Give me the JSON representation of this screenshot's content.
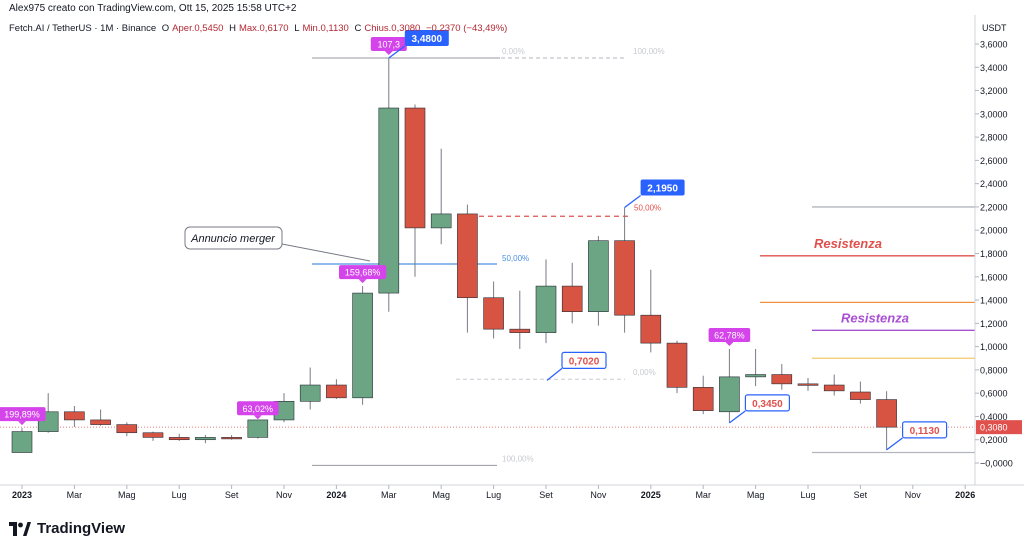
{
  "header": {
    "author_line": "Alex975 creato con TradingView.com, Ott 15, 2025 15:58 UTC+2",
    "symbol": "Fetch.AI / TetherUS · 1M · Binance",
    "o_label": "O",
    "o_val": "Aper.0,5450",
    "h_label": "H",
    "h_val": "Max.0,6170",
    "l_label": "L",
    "l_val": "Min.0,1130",
    "c_label": "C",
    "c_val": "Chius.0,3080",
    "change": "−0,2370 (−43,49%)"
  },
  "brand": {
    "name": "TradingView"
  },
  "chart_data": {
    "type": "candlestick",
    "currency": "USDT",
    "ylim": [
      -0.1,
      3.7
    ],
    "y_ticks": [
      {
        "v": 3.6,
        "label": "3,6000"
      },
      {
        "v": 3.4,
        "label": "3,4000"
      },
      {
        "v": 3.2,
        "label": "3,2000"
      },
      {
        "v": 3.0,
        "label": "3,0000"
      },
      {
        "v": 2.8,
        "label": "2,8000"
      },
      {
        "v": 2.6,
        "label": "2,6000"
      },
      {
        "v": 2.4,
        "label": "2,4000"
      },
      {
        "v": 2.2,
        "label": "2,2000"
      },
      {
        "v": 2.0,
        "label": "2,0000"
      },
      {
        "v": 1.8,
        "label": "1,8000"
      },
      {
        "v": 1.6,
        "label": "1,6000"
      },
      {
        "v": 1.4,
        "label": "1,4000"
      },
      {
        "v": 1.2,
        "label": "1,2000"
      },
      {
        "v": 1.0,
        "label": "1,0000"
      },
      {
        "v": 0.8,
        "label": "0,8000"
      },
      {
        "v": 0.6,
        "label": "0,6000"
      },
      {
        "v": 0.4,
        "label": "0,4000"
      },
      {
        "v": 0.2,
        "label": "0,2000"
      },
      {
        "v": 0.0,
        "label": "−0,0000"
      }
    ],
    "x_labels": [
      {
        "i": 0,
        "label": "2023",
        "bold": true
      },
      {
        "i": 2,
        "label": "Mar"
      },
      {
        "i": 4,
        "label": "Mag"
      },
      {
        "i": 6,
        "label": "Lug"
      },
      {
        "i": 8,
        "label": "Set"
      },
      {
        "i": 10,
        "label": "Nov"
      },
      {
        "i": 12,
        "label": "2024",
        "bold": true
      },
      {
        "i": 14,
        "label": "Mar"
      },
      {
        "i": 16,
        "label": "Mag"
      },
      {
        "i": 18,
        "label": "Lug"
      },
      {
        "i": 20,
        "label": "Set"
      },
      {
        "i": 22,
        "label": "Nov"
      },
      {
        "i": 24,
        "label": "2025",
        "bold": true
      },
      {
        "i": 26,
        "label": "Mar"
      },
      {
        "i": 28,
        "label": "Mag"
      },
      {
        "i": 30,
        "label": "Lug"
      },
      {
        "i": 32,
        "label": "Set"
      },
      {
        "i": 34,
        "label": "Nov"
      },
      {
        "i": 36,
        "label": "2026",
        "bold": true
      }
    ],
    "candles": [
      {
        "d": "2023-01",
        "o": 0.09,
        "h": 0.3,
        "l": 0.09,
        "c": 0.27
      },
      {
        "d": "2023-02",
        "o": 0.27,
        "h": 0.6,
        "l": 0.26,
        "c": 0.44
      },
      {
        "d": "2023-03",
        "o": 0.44,
        "h": 0.49,
        "l": 0.31,
        "c": 0.37
      },
      {
        "d": "2023-04",
        "o": 0.37,
        "h": 0.46,
        "l": 0.32,
        "c": 0.33
      },
      {
        "d": "2023-05",
        "o": 0.33,
        "h": 0.35,
        "l": 0.23,
        "c": 0.26
      },
      {
        "d": "2023-06",
        "o": 0.26,
        "h": 0.27,
        "l": 0.19,
        "c": 0.22
      },
      {
        "d": "2023-07",
        "o": 0.22,
        "h": 0.25,
        "l": 0.19,
        "c": 0.2
      },
      {
        "d": "2023-08",
        "o": 0.2,
        "h": 0.24,
        "l": 0.17,
        "c": 0.22
      },
      {
        "d": "2023-09",
        "o": 0.22,
        "h": 0.24,
        "l": 0.2,
        "c": 0.21
      },
      {
        "d": "2023-10",
        "o": 0.22,
        "h": 0.35,
        "l": 0.21,
        "c": 0.37
      },
      {
        "d": "2023-11",
        "o": 0.37,
        "h": 0.6,
        "l": 0.35,
        "c": 0.53
      },
      {
        "d": "2023-12",
        "o": 0.53,
        "h": 0.82,
        "l": 0.46,
        "c": 0.67
      },
      {
        "d": "2024-01",
        "o": 0.67,
        "h": 0.72,
        "l": 0.55,
        "c": 0.56
      },
      {
        "d": "2024-02",
        "o": 0.56,
        "h": 1.52,
        "l": 0.5,
        "c": 1.46
      },
      {
        "d": "2024-03",
        "o": 1.46,
        "h": 3.48,
        "l": 1.3,
        "c": 3.05
      },
      {
        "d": "2024-04",
        "o": 3.05,
        "h": 3.08,
        "l": 1.6,
        "c": 2.02
      },
      {
        "d": "2024-05",
        "o": 2.02,
        "h": 2.7,
        "l": 1.88,
        "c": 2.14
      },
      {
        "d": "2024-06",
        "o": 2.14,
        "h": 2.22,
        "l": 1.12,
        "c": 1.42
      },
      {
        "d": "2024-07",
        "o": 1.42,
        "h": 1.56,
        "l": 1.07,
        "c": 1.15
      },
      {
        "d": "2024-08",
        "o": 1.15,
        "h": 1.48,
        "l": 0.98,
        "c": 1.12
      },
      {
        "d": "2024-09",
        "o": 1.12,
        "h": 1.75,
        "l": 1.03,
        "c": 1.52
      },
      {
        "d": "2024-10",
        "o": 1.52,
        "h": 1.72,
        "l": 1.2,
        "c": 1.3
      },
      {
        "d": "2024-11",
        "o": 1.3,
        "h": 1.95,
        "l": 1.18,
        "c": 1.91
      },
      {
        "d": "2024-12",
        "o": 1.91,
        "h": 2.195,
        "l": 1.12,
        "c": 1.27
      },
      {
        "d": "2025-01",
        "o": 1.27,
        "h": 1.66,
        "l": 0.95,
        "c": 1.03
      },
      {
        "d": "2025-02",
        "o": 1.03,
        "h": 1.05,
        "l": 0.6,
        "c": 0.65
      },
      {
        "d": "2025-03",
        "o": 0.65,
        "h": 0.75,
        "l": 0.42,
        "c": 0.45
      },
      {
        "d": "2025-04",
        "o": 0.44,
        "h": 0.98,
        "l": 0.345,
        "c": 0.74
      },
      {
        "d": "2025-05",
        "o": 0.74,
        "h": 0.98,
        "l": 0.66,
        "c": 0.76
      },
      {
        "d": "2025-06",
        "o": 0.76,
        "h": 0.85,
        "l": 0.63,
        "c": 0.68
      },
      {
        "d": "2025-07",
        "o": 0.68,
        "h": 0.73,
        "l": 0.62,
        "c": 0.67
      },
      {
        "d": "2025-08",
        "o": 0.67,
        "h": 0.76,
        "l": 0.58,
        "c": 0.62
      },
      {
        "d": "2025-09",
        "o": 0.61,
        "h": 0.7,
        "l": 0.51,
        "c": 0.545
      },
      {
        "d": "2025-10",
        "o": 0.545,
        "h": 0.617,
        "l": 0.113,
        "c": 0.308
      }
    ],
    "last_price": {
      "v": 0.308,
      "label": "0,3080"
    },
    "percent_badges": [
      {
        "text": "199,89%",
        "i": 0,
        "v": 0.3
      },
      {
        "text": "63,02%",
        "i": 9,
        "v": 0.35
      },
      {
        "text": "159,68%",
        "i": 13,
        "v": 1.52
      },
      {
        "text": "107,3",
        "i": 14,
        "v": 3.48
      },
      {
        "text": "62,78%",
        "i": 27,
        "v": 0.98
      }
    ],
    "price_callouts": [
      {
        "text": "3,4800",
        "i": 14,
        "v": 3.48,
        "style": "filled",
        "side": "right"
      },
      {
        "text": "2,1950",
        "i": 23,
        "v": 2.195,
        "style": "filled",
        "side": "right"
      },
      {
        "text": "0,7020",
        "i": 20,
        "v": 0.71,
        "style": "outline",
        "side": "right"
      },
      {
        "text": "0,3450",
        "i": 27,
        "v": 0.345,
        "style": "outline",
        "side": "right"
      },
      {
        "text": "0,1130",
        "i": 33,
        "v": 0.113,
        "style": "outline",
        "side": "right"
      }
    ],
    "fib_levels": [
      {
        "text": "0,00%",
        "v": 3.48
      },
      {
        "text": "100,00%",
        "v": 3.48
      },
      {
        "text": "50,00%",
        "v": 1.71
      },
      {
        "text": "0,00%",
        "v": 0.72
      },
      {
        "text": "100,00%",
        "v": -0.02
      },
      {
        "text": "50,00%",
        "v": 2.12
      }
    ],
    "horizontal_levels": [
      {
        "v": 2.2,
        "color": "#b2b5be"
      },
      {
        "v": 1.78,
        "color": "#e0514d"
      },
      {
        "v": 1.38,
        "color": "#f2913d"
      },
      {
        "v": 1.14,
        "color": "#a94fd4"
      },
      {
        "v": 0.9,
        "color": "#f5c96a"
      },
      {
        "v": 0.09,
        "color": "#b2b5be"
      }
    ],
    "resistance_labels": [
      {
        "text": "Resistenza",
        "color": "#e0514d",
        "v": 1.88
      },
      {
        "text": "Resistenza",
        "color": "#a94fd4",
        "v": 1.24
      }
    ],
    "annotation": {
      "text": "Annuncio merger"
    },
    "colors": {
      "up": "#6ba583",
      "down": "#d75442",
      "badge": "#d444ea",
      "callout": "#2962ff",
      "fib_blue": "#4a90e2"
    }
  }
}
